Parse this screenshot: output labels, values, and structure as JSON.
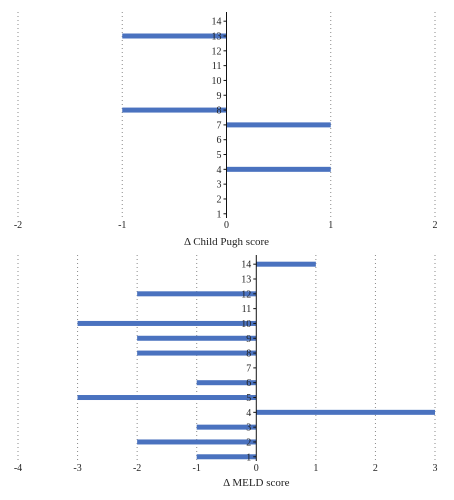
{
  "colors": {
    "bar": "#4a72bf",
    "axis": "#111111",
    "grid": "#8a8a8a",
    "text": "#222222"
  },
  "chart_data": [
    {
      "type": "bar",
      "orientation": "horizontal",
      "xlabel": "Δ Child Pugh score",
      "ylabel": "",
      "xlim": [
        -2,
        2
      ],
      "xticks": [
        -2,
        -1,
        0,
        1,
        2
      ],
      "grid": "vertical dotted",
      "categories": [
        "1",
        "2",
        "3",
        "4",
        "5",
        "6",
        "7",
        "8",
        "9",
        "10",
        "11",
        "12",
        "13",
        "14"
      ],
      "values": [
        0,
        0,
        0,
        1,
        0,
        0,
        1,
        -1,
        0,
        0,
        0,
        0,
        -1,
        0
      ]
    },
    {
      "type": "bar",
      "orientation": "horizontal",
      "xlabel": "Δ MELD score",
      "ylabel": "",
      "xlim": [
        -4,
        3
      ],
      "xticks": [
        -4,
        -3,
        -2,
        -1,
        0,
        1,
        2,
        3
      ],
      "grid": "vertical dotted",
      "categories": [
        "1",
        "2",
        "3",
        "4",
        "5",
        "6",
        "7",
        "8",
        "9",
        "10",
        "11",
        "12",
        "13",
        "14"
      ],
      "values": [
        -1,
        -2,
        -1,
        3,
        -3,
        -1,
        0,
        -2,
        -2,
        -3,
        0,
        -2,
        0,
        1
      ]
    }
  ]
}
